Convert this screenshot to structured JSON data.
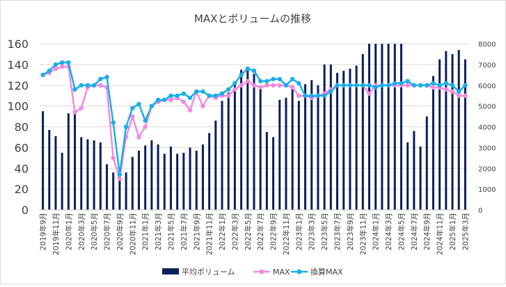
{
  "chart_data": {
    "type": "bar+line",
    "title": "MAXとボリュームの推移",
    "categories": [
      "2019年9月",
      "2019年10月",
      "2019年11月",
      "2019年12月",
      "2020年1月",
      "2020年2月",
      "2020年3月",
      "2020年4月",
      "2020年5月",
      "2020年6月",
      "2020年7月",
      "2020年8月",
      "2020年9月",
      "2020年10月",
      "2020年11月",
      "2020年12月",
      "2021年1月",
      "2021年2月",
      "2021年3月",
      "2021年4月",
      "2021年5月",
      "2021年6月",
      "2021年7月",
      "2021年8月",
      "2021年9月",
      "2021年10月",
      "2021年11月",
      "2021年12月",
      "2022年1月",
      "2022年2月",
      "2022年3月",
      "2022年4月",
      "2022年5月",
      "2022年6月",
      "2022年7月",
      "2022年8月",
      "2022年9月",
      "2022年10月",
      "2022年11月",
      "2022年12月",
      "2023年1月",
      "2023年2月",
      "2023年3月",
      "2023年4月",
      "2023年5月",
      "2023年6月",
      "2023年7月",
      "2023年8月",
      "2023年9月",
      "2023年10月",
      "2023年11月",
      "2023年12月",
      "2024年1月",
      "2024年2月",
      "2024年3月",
      "2024年4月",
      "2024年5月",
      "2024年6月",
      "2024年7月",
      "2024年8月",
      "2024年9月",
      "2024年10月",
      "2024年11月",
      "2024年12月",
      "2025年1月",
      "2025年2月",
      "2025年3月"
    ],
    "x_tick_labels": [
      "2019年9月",
      "2019年11月",
      "2020年1月",
      "2020年3月",
      "2020年5月",
      "2020年7月",
      "2020年9月",
      "2020年11月",
      "2021年1月",
      "2021年3月",
      "2021年5月",
      "2021年7月",
      "2021年9月",
      "2021年11月",
      "2022年1月",
      "2022年3月",
      "2022年5月",
      "2022年7月",
      "2022年9月",
      "2022年11月",
      "2023年1月",
      "2023年3月",
      "2023年5月",
      "2023年7月",
      "2023年9月",
      "2023年11月",
      "2024年1月",
      "2024年3月",
      "2024年5月",
      "2024年7月",
      "2024年9月",
      "2024年11月",
      "2025年1月",
      "2025年3月"
    ],
    "y_left": {
      "lim": [
        0,
        160
      ],
      "ticks": [
        0,
        20,
        40,
        60,
        80,
        100,
        120,
        140,
        160
      ]
    },
    "y_right": {
      "lim": [
        0,
        8000
      ],
      "ticks": [
        0,
        1000,
        2000,
        3000,
        4000,
        5000,
        6000,
        7000,
        8000
      ]
    },
    "series": [
      {
        "name": "平均ボリューム",
        "kind": "bar",
        "axis": "left",
        "color": "#0e1f5b",
        "values": [
          95,
          77,
          71,
          55,
          93,
          93,
          70,
          68,
          67,
          65,
          44,
          36,
          33,
          36,
          51,
          57,
          62,
          67,
          63,
          54,
          61,
          54,
          55,
          60,
          57,
          63,
          74,
          86,
          105,
          113,
          122,
          135,
          137,
          131,
          118,
          75,
          70,
          106,
          108,
          118,
          105,
          121,
          125,
          120,
          140,
          140,
          132,
          134,
          136,
          139,
          150,
          160,
          160,
          160,
          160,
          160,
          160,
          65,
          76,
          61,
          90,
          129,
          145,
          153,
          150,
          154,
          145
        ]
      },
      {
        "name": "MAX",
        "kind": "line",
        "axis": "right",
        "color": "#f28ae0",
        "values": [
          6500,
          6600,
          6800,
          6900,
          6900,
          4700,
          4900,
          5900,
          6000,
          6000,
          5900,
          2500,
          1500,
          3500,
          4500,
          3500,
          4000,
          5000,
          5200,
          5300,
          5300,
          5400,
          5200,
          4800,
          5700,
          5000,
          5500,
          5400,
          5500,
          5500,
          5800,
          6000,
          6200,
          6000,
          5900,
          6000,
          6000,
          6000,
          6000,
          5900,
          5500,
          5500,
          5400,
          5500,
          5600,
          5800,
          6000,
          6000,
          6000,
          6000,
          6000,
          5600,
          6000,
          6000,
          6000,
          6000,
          6000,
          6000,
          6000,
          6000,
          6000,
          5900,
          5900,
          5800,
          5700,
          5500,
          5500
        ]
      },
      {
        "name": "換算MAX",
        "kind": "line",
        "axis": "right",
        "color": "#19aeea",
        "values": [
          6500,
          6700,
          7000,
          7100,
          7100,
          5800,
          6000,
          6000,
          6000,
          6300,
          6400,
          4200,
          1700,
          4000,
          4900,
          5100,
          4300,
          5000,
          5300,
          5300,
          5500,
          5500,
          5600,
          5400,
          5700,
          5700,
          5500,
          5500,
          5600,
          5800,
          6100,
          6500,
          6800,
          6700,
          6200,
          6200,
          6300,
          6300,
          6000,
          6300,
          6100,
          5500,
          5500,
          5500,
          5500,
          5700,
          6000,
          6000,
          6000,
          6000,
          6000,
          6000,
          5900,
          6000,
          6000,
          6100,
          6100,
          6200,
          6000,
          6000,
          6000,
          6100,
          6000,
          6100,
          6000,
          5700,
          6000
        ]
      }
    ],
    "legend": {
      "placement": "bottom",
      "items": [
        {
          "label": "平均ボリューム",
          "marker": "bar",
          "color": "#0e1f5b"
        },
        {
          "label": "MAX",
          "marker": "line",
          "color": "#f28ae0"
        },
        {
          "label": "換算MAX",
          "marker": "line",
          "color": "#19aeea"
        }
      ]
    },
    "grid": "horizontal"
  }
}
